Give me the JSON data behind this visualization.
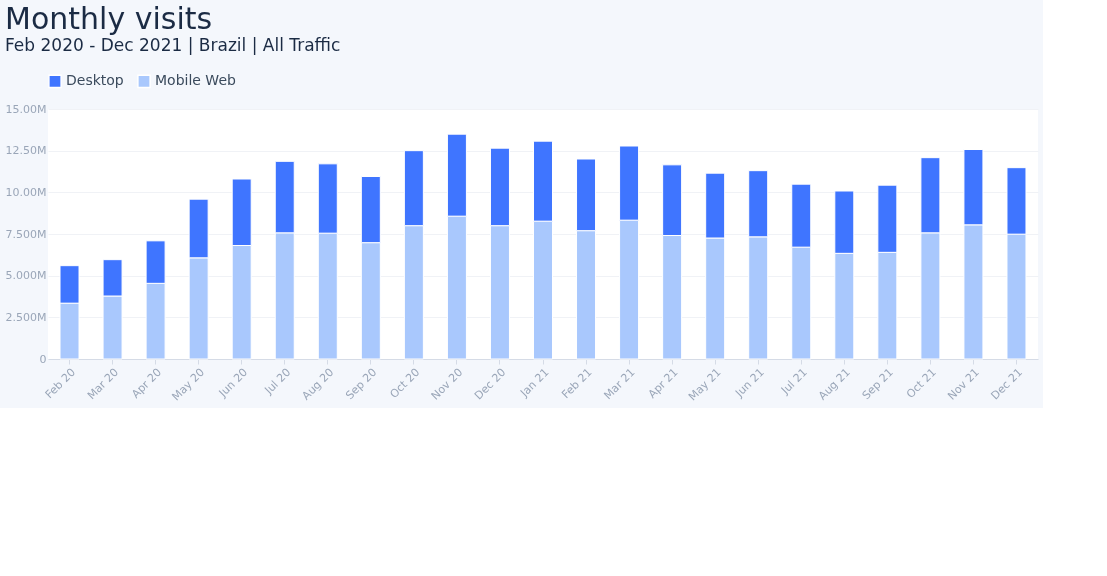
{
  "chart_data": {
    "type": "bar",
    "title": "Monthly visits",
    "subtitle": "Feb 2020 - Dec 2021 | Brazil | All Traffic",
    "categories": [
      "Feb 20",
      "Mar 20",
      "Apr 20",
      "May 20",
      "Jun 20",
      "Jul 20",
      "Aug 20",
      "Sep 20",
      "Oct 20",
      "Nov 20",
      "Dec 20",
      "Jan 21",
      "Feb 21",
      "Mar 21",
      "Apr 21",
      "May 21",
      "Jun 21",
      "Jul 21",
      "Aug 21",
      "Sep 21",
      "Oct 21",
      "Nov 21",
      "Dec 21"
    ],
    "stacked": true,
    "series": [
      {
        "name": "Mobile Web",
        "color": "#a9c8fd",
        "values": [
          3.35,
          3.78,
          4.54,
          6.07,
          6.81,
          7.57,
          7.55,
          6.98,
          8.0,
          8.57,
          8.0,
          8.27,
          7.7,
          8.33,
          7.41,
          7.26,
          7.33,
          6.71,
          6.34,
          6.4,
          7.57,
          8.05,
          7.49
        ]
      },
      {
        "name": "Desktop",
        "color": "#3f75ff",
        "values": [
          2.25,
          2.18,
          2.55,
          3.52,
          3.99,
          4.29,
          4.16,
          3.97,
          4.5,
          4.92,
          4.65,
          4.8,
          4.3,
          4.45,
          4.24,
          3.89,
          3.97,
          3.78,
          3.74,
          4.03,
          4.51,
          4.52,
          3.99
        ]
      }
    ],
    "ylim": [
      0,
      15
    ],
    "yticks": [
      {
        "value": 0,
        "label": "0"
      },
      {
        "value": 2.5,
        "label": "2.500M"
      },
      {
        "value": 5,
        "label": "5.000M"
      },
      {
        "value": 7.5,
        "label": "7.500M"
      },
      {
        "value": 10,
        "label": "10.00M"
      },
      {
        "value": 12.5,
        "label": "12.50M"
      },
      {
        "value": 15,
        "label": "15.00M"
      }
    ],
    "grid": "y",
    "legend": "top left"
  }
}
